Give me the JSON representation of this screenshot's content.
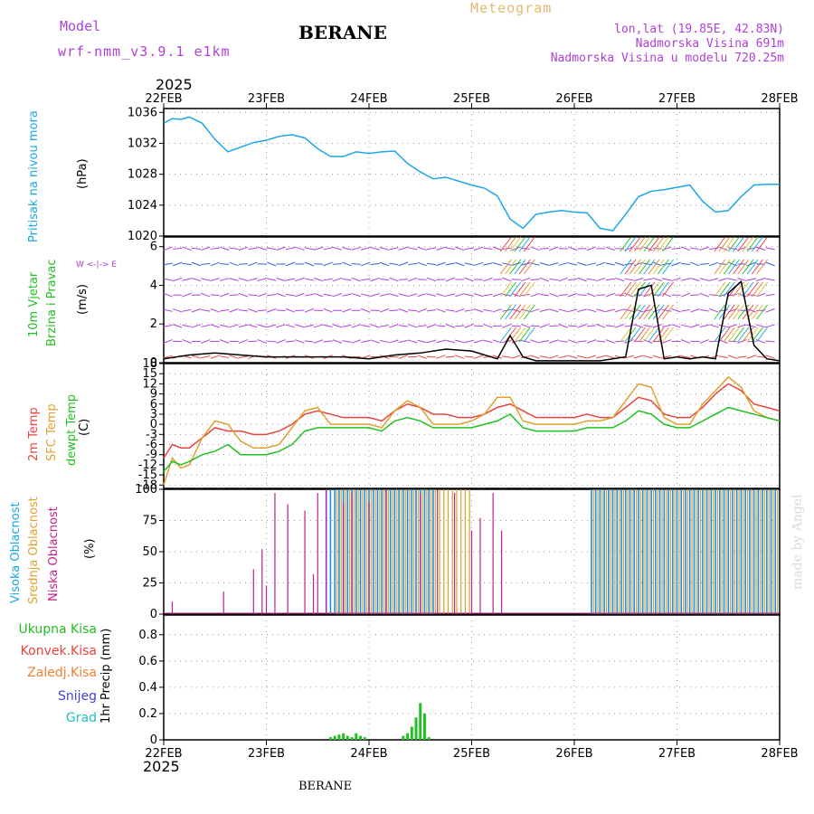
{
  "header": {
    "model_label": "Model",
    "model_name": "wrf-nmm_v3.9.1 e1km",
    "station": "BERANE",
    "product": "Meteogram",
    "lonlat": "lon,lat (19.85E, 42.83N)",
    "elevation": "Nadmorska Visina 691m",
    "model_elevation": "Nadmorska Visina u modelu 720.25m",
    "year_top": "2025",
    "year_bottom": "2025",
    "footer_station": "BERANE",
    "watermark": "made by Angel"
  },
  "colors": {
    "pressure": "#1aa7e6",
    "temp2m": "#e8433d",
    "sfc_temp": "#e0a030",
    "dewpt": "#22c022",
    "high_cloud": "#1a8fe6",
    "mid_cloud": "#d8a030",
    "low_cloud": "#c0208a",
    "precip_total": "#22c022",
    "precip_conv": "#e8433d",
    "precip_frozen": "#f08030",
    "precip_snow": "#4040e0",
    "precip_grad": "#20c0c0",
    "model_purple": "#b040d8",
    "meteogram_orange": "#e8b870"
  },
  "axis": {
    "date_labels": [
      "22FEB",
      "23FEB",
      "24FEB",
      "25FEB",
      "26FEB",
      "27FEB",
      "28FEB"
    ]
  },
  "panels": {
    "pressure": {
      "label1": "Pritisak na nivou mora",
      "unit": "(hPa)"
    },
    "wind": {
      "label1": "10m Vjetar",
      "label2": "Brzina i Pravac",
      "unit": "(m/s)",
      "compass": "W <-|-> E"
    },
    "temp": {
      "label1": "2m Temp",
      "label2": "SFC Temp",
      "label3": "dewpt Temp",
      "unit": "(C)"
    },
    "cloud": {
      "label1": "Visoka Oblacnost",
      "label2": "Srednja Oblacnost",
      "label3": "Niska Oblacnost",
      "unit": "(%)"
    },
    "precip": {
      "legend": [
        "Ukupna Kisa",
        "Konvek.Kisa",
        "Zaledj.Kisa",
        "Snijeg",
        "Grad"
      ],
      "unit": "1hr Precip (mm)"
    }
  },
  "chart_data": [
    {
      "type": "line",
      "name_key": "pressure",
      "ylim": [
        1020,
        1036.5
      ],
      "yticks": [
        1020,
        1024,
        1028,
        1032,
        1036
      ],
      "xlim": [
        0,
        144
      ],
      "series": [
        {
          "x": [
            0,
            2,
            4,
            6,
            9,
            12,
            15,
            18,
            21,
            24,
            27,
            30,
            33,
            36,
            39,
            42,
            45,
            48,
            51,
            54,
            57,
            60,
            63,
            66,
            69,
            72,
            75,
            78,
            81,
            84,
            87,
            90,
            93,
            96,
            99,
            102,
            105,
            108,
            111,
            114,
            117,
            120,
            123,
            126,
            129,
            132,
            135,
            138,
            141,
            144
          ],
          "values": [
            1034.6,
            1035.2,
            1035.1,
            1035.4,
            1034.6,
            1032.5,
            1030.9,
            1031.5,
            1032.1,
            1032.4,
            1032.9,
            1033.1,
            1032.7,
            1031.3,
            1030.3,
            1030.3,
            1030.9,
            1030.7,
            1030.9,
            1031.0,
            1029.4,
            1028.3,
            1027.4,
            1027.6,
            1027.1,
            1026.6,
            1026.2,
            1025.2,
            1022.2,
            1021.0,
            1022.8,
            1023.1,
            1023.3,
            1023.1,
            1023.0,
            1021.0,
            1020.7,
            1022.8,
            1025.1,
            1025.8,
            1026.0,
            1026.3,
            1026.6,
            1024.5,
            1023.1,
            1023.3,
            1025.1,
            1026.6,
            1026.7,
            1026.7
          ]
        }
      ]
    },
    {
      "type": "line",
      "name_key": "wind",
      "ylim": [
        0,
        6.5
      ],
      "yticks": [
        0,
        2,
        4,
        6
      ],
      "xlim": [
        0,
        144
      ],
      "series": [
        {
          "x": [
            0,
            6,
            12,
            18,
            24,
            30,
            36,
            42,
            48,
            54,
            60,
            66,
            72,
            78,
            81,
            84,
            87,
            90,
            96,
            102,
            105,
            108,
            111,
            114,
            117,
            120,
            123,
            126,
            129,
            132,
            135,
            138,
            141,
            144
          ],
          "values": [
            0.2,
            0.4,
            0.5,
            0.4,
            0.3,
            0.3,
            0.3,
            0.3,
            0.2,
            0.4,
            0.5,
            0.7,
            0.6,
            0.2,
            1.4,
            0.3,
            0.1,
            0.1,
            0.1,
            0.1,
            0.2,
            0.3,
            3.8,
            4.0,
            0.2,
            0.3,
            0.2,
            0.3,
            0.2,
            3.6,
            4.2,
            0.9,
            0.2,
            0.1
          ]
        }
      ]
    },
    {
      "type": "line",
      "name_key": "temp",
      "ylim": [
        -19,
        18
      ],
      "yticks": [
        -18,
        -15,
        -12,
        -9,
        -6,
        -3,
        0,
        3,
        6,
        9,
        12,
        15,
        18
      ],
      "xlim": [
        0,
        144
      ],
      "series": [
        {
          "x": [
            0,
            2,
            4,
            6,
            9,
            12,
            15,
            18,
            21,
            24,
            27,
            30,
            33,
            36,
            39,
            42,
            45,
            48,
            51,
            54,
            57,
            60,
            63,
            66,
            69,
            72,
            75,
            78,
            81,
            84,
            87,
            90,
            93,
            96,
            99,
            102,
            105,
            108,
            111,
            114,
            117,
            120,
            123,
            126,
            129,
            132,
            135,
            138,
            141,
            144
          ],
          "values": [
            -10,
            -6,
            -7,
            -7,
            -4,
            -1,
            -2,
            -2,
            -3,
            -3,
            -2,
            0,
            3,
            4,
            3,
            2,
            2,
            2,
            1,
            4,
            6,
            5,
            3,
            3,
            2,
            2,
            3,
            5,
            6,
            4,
            2,
            2,
            2,
            2,
            3,
            2,
            2,
            5,
            8,
            7,
            3,
            2,
            2,
            5,
            9,
            12,
            10,
            6,
            5,
            4
          ]
        },
        {
          "x": [
            0,
            2,
            4,
            6,
            9,
            12,
            15,
            18,
            21,
            24,
            27,
            30,
            33,
            36,
            39,
            42,
            45,
            48,
            51,
            54,
            57,
            60,
            63,
            66,
            69,
            72,
            75,
            78,
            81,
            84,
            87,
            90,
            93,
            96,
            99,
            102,
            105,
            108,
            111,
            114,
            117,
            120,
            123,
            126,
            129,
            132,
            135,
            138,
            141,
            144
          ],
          "values": [
            -18,
            -10,
            -13,
            -12,
            -4,
            1,
            0,
            -5,
            -7,
            -7,
            -6,
            -1,
            4,
            5,
            0,
            0,
            0,
            0,
            -1,
            4,
            7,
            5,
            0,
            0,
            0,
            1,
            3,
            8,
            8,
            1,
            0,
            0,
            0,
            0,
            1,
            1,
            2,
            7,
            12,
            11,
            2,
            0,
            0,
            6,
            10,
            14,
            11,
            4,
            2,
            1
          ]
        },
        {
          "x": [
            0,
            2,
            4,
            6,
            9,
            12,
            15,
            18,
            21,
            24,
            27,
            30,
            33,
            36,
            39,
            42,
            45,
            48,
            51,
            54,
            57,
            60,
            63,
            66,
            69,
            72,
            75,
            78,
            81,
            84,
            87,
            90,
            93,
            96,
            99,
            102,
            105,
            108,
            111,
            114,
            117,
            120,
            123,
            126,
            129,
            132,
            135,
            138,
            141,
            144
          ],
          "values": [
            -14,
            -11,
            -12,
            -11,
            -9,
            -8,
            -6,
            -9,
            -9,
            -9,
            -8,
            -6,
            -2,
            -1,
            -1,
            -1,
            -1,
            -1,
            -2,
            1,
            2,
            1,
            -1,
            -1,
            -1,
            -1,
            0,
            1,
            3,
            -1,
            -2,
            -2,
            -2,
            -2,
            -1,
            -1,
            -1,
            1,
            4,
            3,
            0,
            -1,
            -1,
            1,
            3,
            5,
            4,
            3,
            2,
            1
          ]
        }
      ]
    },
    {
      "type": "bar",
      "name_key": "cloud",
      "ylim": [
        0,
        100
      ],
      "yticks": [
        0,
        25,
        50,
        75,
        100
      ],
      "xlim": [
        0,
        144
      ],
      "low": [
        [
          2,
          10
        ],
        [
          14,
          18
        ],
        [
          21,
          36
        ],
        [
          23,
          52
        ],
        [
          24,
          23
        ],
        [
          26,
          97
        ],
        [
          29,
          88
        ],
        [
          33,
          83
        ],
        [
          35,
          32
        ],
        [
          36,
          97
        ],
        [
          38,
          100
        ],
        [
          42,
          90
        ],
        [
          44,
          97
        ],
        [
          48,
          90
        ],
        [
          52,
          100
        ],
        [
          60,
          97
        ],
        [
          64,
          100
        ],
        [
          68,
          97
        ],
        [
          72,
          67
        ],
        [
          74,
          77
        ],
        [
          77,
          97
        ],
        [
          79,
          67
        ]
      ],
      "high_block": [
        [
          38,
          64,
          100
        ],
        [
          100,
          144,
          100
        ]
      ],
      "mid_block": [
        [
          40,
          72,
          100
        ],
        [
          100,
          144,
          100
        ]
      ]
    },
    {
      "type": "bar",
      "name_key": "precip",
      "ylim": [
        0,
        0.95
      ],
      "yticks": [
        0,
        0.2,
        0.4,
        0.6,
        0.8
      ],
      "xlim": [
        0,
        144
      ],
      "total": [
        [
          39,
          0.02
        ],
        [
          40,
          0.03
        ],
        [
          41,
          0.04
        ],
        [
          42,
          0.05
        ],
        [
          43,
          0.03
        ],
        [
          44,
          0.02
        ],
        [
          45,
          0.05
        ],
        [
          46,
          0.03
        ],
        [
          47,
          0.02
        ],
        [
          56,
          0.03
        ],
        [
          57,
          0.05
        ],
        [
          58,
          0.1
        ],
        [
          59,
          0.17
        ],
        [
          60,
          0.28
        ],
        [
          61,
          0.2
        ],
        [
          62,
          0.02
        ]
      ]
    }
  ]
}
